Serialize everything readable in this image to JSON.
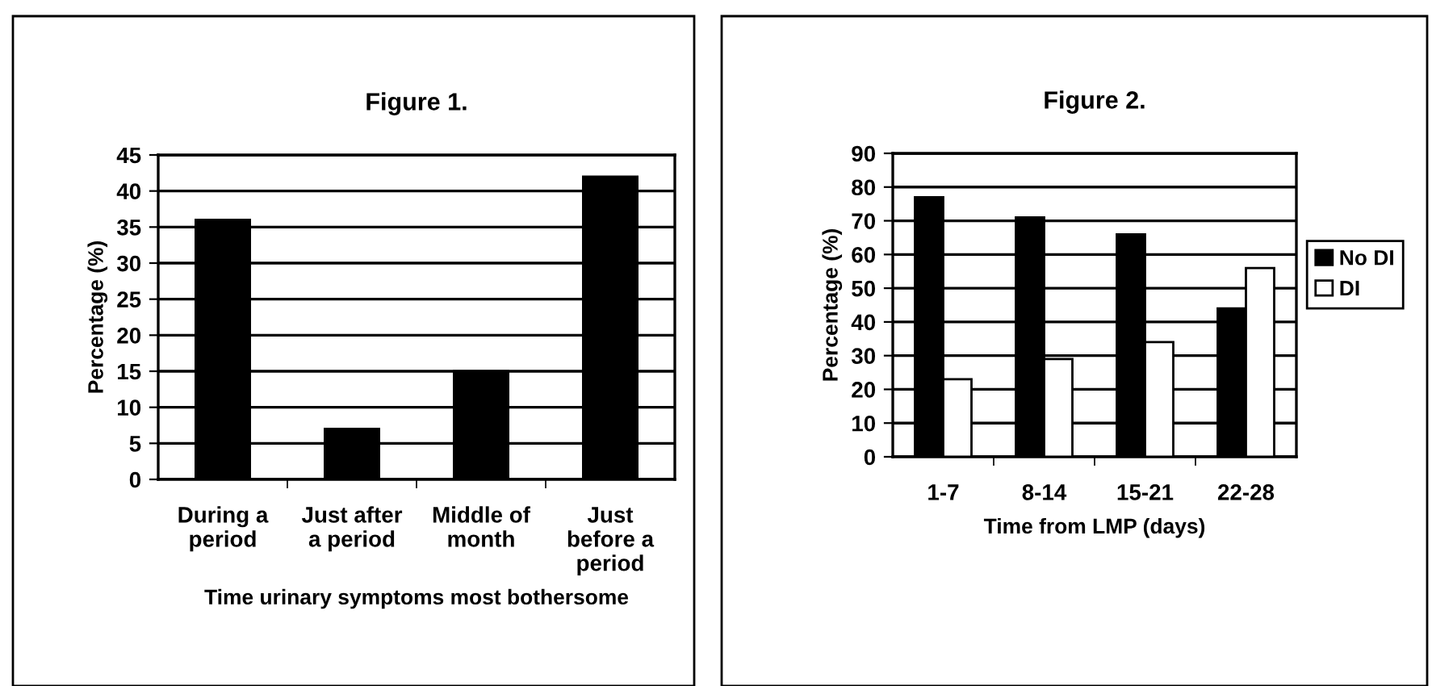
{
  "chart_data": [
    {
      "type": "bar",
      "title": "Figure 1.",
      "xlabel": "Time urinary symptoms most bothersome",
      "ylabel": "Percentage (%)",
      "categories": [
        "During a\nperiod",
        "Just after\na period",
        "Middle of\nmonth",
        "Just\nbefore a\nperiod"
      ],
      "values": [
        36,
        7,
        15,
        42
      ],
      "color": "#000000",
      "ylim": [
        0,
        45
      ],
      "yticks": [
        0,
        5,
        10,
        15,
        20,
        25,
        30,
        35,
        40,
        45
      ],
      "grid": "y",
      "legend": false
    },
    {
      "type": "bar",
      "title": "Figure 2.",
      "xlabel": "Time from LMP (days)",
      "ylabel": "Percentage (%)",
      "categories": [
        "1-7",
        "8-14",
        "15-21",
        "22-28"
      ],
      "series": [
        {
          "name": "No DI",
          "color": "#000000",
          "values": [
            77,
            71,
            66,
            44
          ]
        },
        {
          "name": "DI",
          "color": "#ffffff",
          "values": [
            23,
            29,
            34,
            56
          ]
        }
      ],
      "ylim": [
        0,
        90
      ],
      "yticks": [
        0,
        10,
        20,
        30,
        40,
        50,
        60,
        70,
        80,
        90
      ],
      "grid": "y",
      "legend": "right"
    }
  ]
}
